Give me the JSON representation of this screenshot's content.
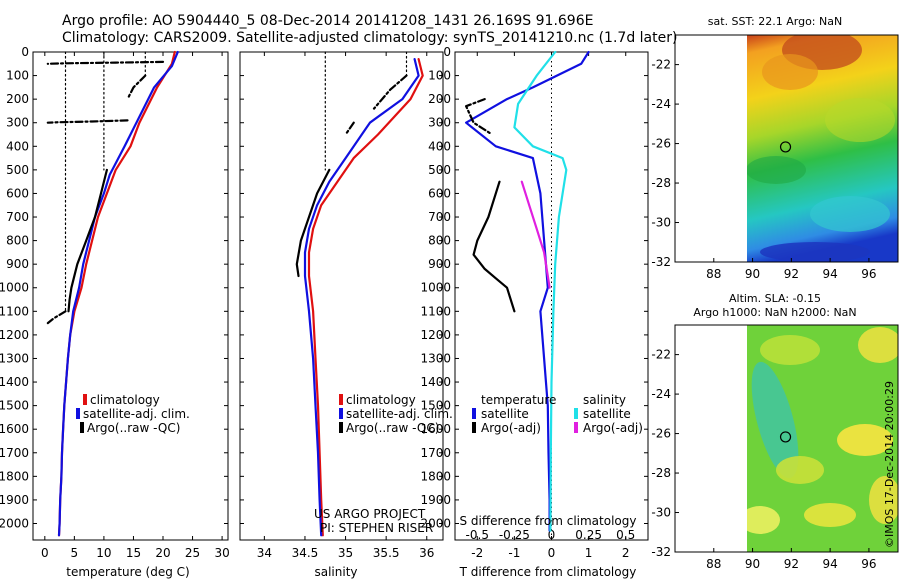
{
  "header": {
    "line1": "Argo profile: AO 5904440_5 08-Dec-2014 20141208_1431 26.169S 91.696E",
    "line2": "Climatology: CARS2009. Satellite-adjusted climatology: synTS_20141210.nc (1.7d later)"
  },
  "colors": {
    "climatology": "#e01010",
    "satellite": "#1010e0",
    "argo": "#000000",
    "satellite_salinity": "#20e0e8",
    "argo_salinity": "#e020e0"
  },
  "timestamp": "©IMOS 17-Dec-2014 20:00:29",
  "chart_data": [
    {
      "id": "temperature",
      "type": "line",
      "xlabel": "temperature (deg C)",
      "xlim": [
        -2,
        31
      ],
      "ylim": [
        2070,
        0
      ],
      "xticks": [
        0,
        5,
        10,
        15,
        20,
        25,
        30
      ],
      "yticks": [
        0,
        100,
        200,
        300,
        400,
        500,
        600,
        700,
        800,
        900,
        1000,
        1100,
        1200,
        1300,
        1400,
        1500,
        1600,
        1700,
        1800,
        1900,
        2000
      ],
      "legend": [
        "climatology",
        "satellite-adj. clim.",
        "Argo(..raw -QC)"
      ],
      "series": [
        {
          "name": "climatology",
          "color_key": "climatology",
          "style": "solid",
          "points": [
            [
              22,
              0
            ],
            [
              21.5,
              50
            ],
            [
              19,
              150
            ],
            [
              16,
              300
            ],
            [
              14.5,
              400
            ],
            [
              12,
              500
            ],
            [
              10.5,
              600
            ],
            [
              9,
              700
            ],
            [
              8,
              800
            ],
            [
              7,
              900
            ],
            [
              6.2,
              1000
            ],
            [
              5,
              1100
            ],
            [
              4.3,
              1200
            ],
            [
              3.9,
              1300
            ],
            [
              3.6,
              1400
            ],
            [
              3.3,
              1500
            ],
            [
              3.1,
              1600
            ],
            [
              2.9,
              1700
            ],
            [
              2.8,
              1800
            ],
            [
              2.6,
              1900
            ],
            [
              2.5,
              2000
            ],
            [
              2.4,
              2050
            ]
          ]
        },
        {
          "name": "satellite-adj. clim.",
          "color_key": "satellite",
          "style": "solid",
          "points": [
            [
              22.5,
              0
            ],
            [
              21.5,
              60
            ],
            [
              18.5,
              150
            ],
            [
              15.5,
              300
            ],
            [
              13.5,
              400
            ],
            [
              11,
              520
            ],
            [
              10,
              600
            ],
            [
              8.5,
              700
            ],
            [
              7.5,
              800
            ],
            [
              6.5,
              900
            ],
            [
              5.8,
              1000
            ],
            [
              4.8,
              1100
            ],
            [
              4.3,
              1200
            ],
            [
              3.9,
              1300
            ],
            [
              3.6,
              1400
            ],
            [
              3.3,
              1500
            ],
            [
              3.1,
              1600
            ],
            [
              2.9,
              1700
            ],
            [
              2.8,
              1800
            ],
            [
              2.6,
              1900
            ],
            [
              2.5,
              2000
            ],
            [
              2.4,
              2050
            ]
          ]
        },
        {
          "name": "Argo(..raw -QC)",
          "color_key": "argo",
          "style": "solid",
          "points": [
            [
              10.5,
              500
            ],
            [
              9.5,
              600
            ],
            [
              8.5,
              700
            ],
            [
              7,
              800
            ],
            [
              5.5,
              900
            ],
            [
              4.5,
              1000
            ],
            [
              4.2,
              1050
            ],
            [
              4,
              1100
            ]
          ]
        },
        {
          "name": "Argo(..raw -QC)",
          "color_key": "argo",
          "style": "dashdot",
          "points": [
            [
              20,
              42
            ],
            [
              12,
              45
            ],
            [
              3.5,
              48
            ],
            [
              0.5,
              50
            ]
          ]
        },
        {
          "name": "Argo(..raw -QC)",
          "color_key": "argo",
          "style": "dashdot",
          "points": [
            [
              17,
              100
            ],
            [
              15,
              150
            ],
            [
              14,
              200
            ]
          ]
        },
        {
          "name": "Argo(..raw -QC)",
          "color_key": "argo",
          "style": "dashdot",
          "points": [
            [
              14,
              290
            ],
            [
              8,
              295
            ],
            [
              2,
              298
            ],
            [
              0.5,
              300
            ]
          ]
        },
        {
          "name": "Argo(..raw -QC)",
          "color_key": "argo",
          "style": "dashdot",
          "points": [
            [
              3.5,
              1100
            ],
            [
              1.5,
              1130
            ],
            [
              0.5,
              1150
            ]
          ]
        },
        {
          "name": "Argo(..raw -QC)",
          "color_key": "argo",
          "style": "dotted",
          "points": [
            [
              3.5,
              0
            ],
            [
              3.5,
              1100
            ]
          ]
        },
        {
          "name": "Argo(..raw -QC)",
          "color_key": "argo",
          "style": "dotted",
          "points": [
            [
              10,
              0
            ],
            [
              10,
              500
            ]
          ]
        },
        {
          "name": "Argo(..raw -QC)",
          "color_key": "argo",
          "style": "dotted",
          "points": [
            [
              17,
              0
            ],
            [
              17,
              100
            ]
          ]
        }
      ]
    },
    {
      "id": "salinity",
      "type": "line",
      "xlabel": "salinity",
      "xlim": [
        33.7,
        36.2
      ],
      "ylim": [
        2070,
        0
      ],
      "xticks": [
        34,
        34.5,
        35,
        35.5,
        36
      ],
      "legend": [
        "climatology",
        "satellite-adj. clim.",
        "Argo(..raw -QC)"
      ],
      "annotation": [
        "US ARGO PROJECT",
        "PI: STEPHEN RISER"
      ],
      "series": [
        {
          "name": "climatology",
          "color_key": "climatology",
          "style": "solid",
          "points": [
            [
              35.9,
              30
            ],
            [
              35.95,
              100
            ],
            [
              35.8,
              200
            ],
            [
              35.4,
              350
            ],
            [
              35.1,
              450
            ],
            [
              34.9,
              550
            ],
            [
              34.7,
              650
            ],
            [
              34.6,
              750
            ],
            [
              34.55,
              850
            ],
            [
              34.55,
              950
            ],
            [
              34.6,
              1100
            ],
            [
              34.63,
              1300
            ],
            [
              34.66,
              1500
            ],
            [
              34.68,
              1700
            ],
            [
              34.7,
              1900
            ],
            [
              34.72,
              2050
            ]
          ]
        },
        {
          "name": "satellite-adj. clim.",
          "color_key": "satellite",
          "style": "solid",
          "points": [
            [
              35.85,
              30
            ],
            [
              35.9,
              100
            ],
            [
              35.7,
              200
            ],
            [
              35.3,
              300
            ],
            [
              35,
              450
            ],
            [
              34.8,
              550
            ],
            [
              34.65,
              650
            ],
            [
              34.55,
              750
            ],
            [
              34.5,
              850
            ],
            [
              34.5,
              950
            ],
            [
              34.55,
              1100
            ],
            [
              34.6,
              1300
            ],
            [
              34.63,
              1500
            ],
            [
              34.66,
              1700
            ],
            [
              34.68,
              1900
            ],
            [
              34.7,
              2050
            ]
          ]
        },
        {
          "name": "Argo(..raw -QC)",
          "color_key": "argo",
          "style": "solid",
          "points": [
            [
              34.8,
              500
            ],
            [
              34.65,
              600
            ],
            [
              34.55,
              700
            ],
            [
              34.45,
              800
            ],
            [
              34.4,
              900
            ],
            [
              34.42,
              950
            ]
          ]
        },
        {
          "name": "Argo(..raw -QC)",
          "color_key": "argo",
          "style": "dashdot",
          "points": [
            [
              35.75,
              100
            ],
            [
              35.55,
              160
            ],
            [
              35.35,
              240
            ]
          ]
        },
        {
          "name": "Argo(..raw -QC)",
          "color_key": "argo",
          "style": "dashdot",
          "points": [
            [
              35.1,
              300
            ],
            [
              35.0,
              350
            ]
          ]
        },
        {
          "name": "Argo(..raw -QC)",
          "color_key": "argo",
          "style": "dotted",
          "points": [
            [
              34.75,
              0
            ],
            [
              34.75,
              500
            ]
          ]
        },
        {
          "name": "Argo(..raw -QC)",
          "color_key": "argo",
          "style": "dotted",
          "points": [
            [
              35.75,
              0
            ],
            [
              35.75,
              100
            ]
          ]
        }
      ]
    },
    {
      "id": "difference",
      "type": "line",
      "xlabel": "T difference from climatology",
      "xlabel_top": "S difference from climatology",
      "xlim": [
        -2.6,
        2.6
      ],
      "ylim": [
        2070,
        0
      ],
      "xticks": [
        -2,
        -1,
        0,
        1,
        2
      ],
      "xticks_top": [
        "-0.5",
        "-0.25",
        "0",
        "0.25",
        "0.5"
      ],
      "legend_groups": [
        {
          "title": "temperature",
          "items": [
            "satellite",
            "Argo(-adj)"
          ]
        },
        {
          "title": "salinity",
          "items": [
            "satellite",
            "Argo(-adj)"
          ]
        }
      ],
      "series": [
        {
          "name": "temperature satellite",
          "color_key": "satellite",
          "style": "solid",
          "points": [
            [
              1,
              0
            ],
            [
              0.8,
              50
            ],
            [
              -0.5,
              150
            ],
            [
              -1.2,
              200
            ],
            [
              -2.3,
              300
            ],
            [
              -1.5,
              400
            ],
            [
              -0.5,
              450
            ],
            [
              -0.3,
              600
            ],
            [
              -0.2,
              800
            ],
            [
              -0.1,
              1000
            ],
            [
              -0.3,
              1100
            ],
            [
              -0.2,
              1300
            ],
            [
              -0.1,
              1500
            ],
            [
              -0.08,
              1700
            ],
            [
              -0.05,
              1900
            ],
            [
              -0.05,
              2030
            ]
          ]
        },
        {
          "name": "temperature Argo(-adj)",
          "color_key": "argo",
          "style": "solid",
          "points": [
            [
              -1.4,
              550
            ],
            [
              -1.5,
              600
            ],
            [
              -1.7,
              700
            ],
            [
              -2.0,
              800
            ],
            [
              -2.1,
              860
            ],
            [
              -1.8,
              920
            ],
            [
              -1.5,
              960
            ],
            [
              -1.2,
              1000
            ],
            [
              -1.0,
              1100
            ]
          ]
        },
        {
          "name": "temperature Argo(-adj)",
          "color_key": "argo",
          "style": "dashdot",
          "points": [
            [
              -1.8,
              200
            ],
            [
              -2.3,
              230
            ],
            [
              -2.1,
              300
            ],
            [
              -1.6,
              350
            ]
          ]
        },
        {
          "name": "salinity satellite",
          "color_key": "satellite_salinity",
          "style": "solid",
          "points": [
            [
              0.1,
              0
            ],
            [
              -0.4,
              100
            ],
            [
              -0.9,
              220
            ],
            [
              -1.0,
              320
            ],
            [
              -0.5,
              400
            ],
            [
              0.3,
              450
            ],
            [
              0.4,
              500
            ],
            [
              0.2,
              700
            ],
            [
              0.1,
              900
            ],
            [
              0.05,
              1100
            ],
            [
              0,
              1400
            ],
            [
              -0.02,
              1700
            ],
            [
              -0.03,
              2030
            ]
          ]
        },
        {
          "name": "salinity Argo(-adj)",
          "color_key": "argo_salinity",
          "style": "solid",
          "points": [
            [
              -0.8,
              550
            ],
            [
              -0.6,
              650
            ],
            [
              -0.4,
              750
            ],
            [
              -0.2,
              850
            ],
            [
              -0.1,
              950
            ],
            [
              -0.05,
              1000
            ]
          ]
        }
      ],
      "depth_axis": true
    },
    {
      "id": "sst_map",
      "type": "heatmap",
      "title": "sat. SST: 22.1 Argo: NaN",
      "xlim": [
        86,
        97.5
      ],
      "ylim": [
        -32,
        -20.5
      ],
      "xticks": [
        88,
        90,
        92,
        94,
        96
      ],
      "yticks": [
        -22,
        -24,
        -26,
        -28,
        -30,
        -32
      ],
      "data_xlim": [
        90,
        97.5
      ],
      "marker": [
        91.7,
        -26.17
      ]
    },
    {
      "id": "sla_map",
      "type": "heatmap",
      "title": "Altim. SLA: -0.15",
      "subtitle": "Argo h1000: NaN h2000: NaN",
      "xlim": [
        86,
        97.5
      ],
      "ylim": [
        -32,
        -20.5
      ],
      "xticks": [
        88,
        90,
        92,
        94,
        96
      ],
      "yticks": [
        -22,
        -24,
        -26,
        -28,
        -30,
        -32
      ],
      "data_xlim": [
        90,
        97.5
      ],
      "marker": [
        91.7,
        -26.17
      ]
    }
  ]
}
